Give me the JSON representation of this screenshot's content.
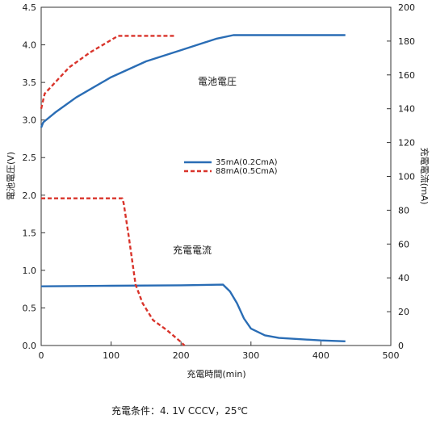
{
  "chart_data": {
    "type": "line",
    "xlabel": "充電時間(min)",
    "ylabel_left": "電池電圧(V)",
    "ylabel_right": "充電電流(mA)",
    "xlim": [
      0,
      500
    ],
    "ylim_left": [
      0.0,
      4.5
    ],
    "ylim_right": [
      0,
      200
    ],
    "x_ticks": [
      "0",
      "100",
      "200",
      "300",
      "400",
      "500"
    ],
    "y_left_ticks": [
      "0.0",
      "0.5",
      "1.0",
      "1.5",
      "2.0",
      "2.5",
      "3.0",
      "3.5",
      "4.0",
      "4.5"
    ],
    "y_right_ticks": [
      "0",
      "20",
      "40",
      "60",
      "80",
      "100",
      "120",
      "140",
      "160",
      "180",
      "200"
    ],
    "annotations": {
      "voltage": "電池電圧",
      "current": "充電電流"
    },
    "legend": [
      {
        "label": "35mA(0.2CmA)",
        "color": "#2a6db5",
        "style": "solid"
      },
      {
        "label": "88mA(0.5CmA)",
        "color": "#d9342b",
        "style": "dashed"
      }
    ],
    "series": [
      {
        "name": "35mA(0.2CmA)",
        "quantity": "電池電圧",
        "axis": "left",
        "color": "#2a6db5",
        "dash": false,
        "points": [
          [
            0,
            2.9
          ],
          [
            3,
            2.97
          ],
          [
            20,
            3.1
          ],
          [
            50,
            3.3
          ],
          [
            100,
            3.57
          ],
          [
            150,
            3.78
          ],
          [
            200,
            3.93
          ],
          [
            250,
            4.08
          ],
          [
            275,
            4.13
          ],
          [
            300,
            4.13
          ],
          [
            435,
            4.13
          ]
        ]
      },
      {
        "name": "88mA(0.5CmA)",
        "quantity": "電池電圧",
        "axis": "left",
        "color": "#d9342b",
        "dash": true,
        "points": [
          [
            0,
            3.15
          ],
          [
            5,
            3.35
          ],
          [
            20,
            3.5
          ],
          [
            40,
            3.7
          ],
          [
            70,
            3.9
          ],
          [
            110,
            4.12
          ],
          [
            150,
            4.12
          ],
          [
            190,
            4.12
          ]
        ]
      },
      {
        "name": "35mA(0.2CmA)",
        "quantity": "充電電流",
        "axis": "right",
        "color": "#2a6db5",
        "dash": false,
        "points": [
          [
            0,
            35
          ],
          [
            100,
            35.3
          ],
          [
            200,
            35.6
          ],
          [
            260,
            36
          ],
          [
            270,
            32
          ],
          [
            280,
            25
          ],
          [
            290,
            16
          ],
          [
            300,
            10
          ],
          [
            320,
            6
          ],
          [
            340,
            4.5
          ],
          [
            400,
            3
          ],
          [
            435,
            2.5
          ]
        ]
      },
      {
        "name": "88mA(0.5CmA)",
        "quantity": "充電電流",
        "axis": "right",
        "color": "#d9342b",
        "dash": true,
        "points": [
          [
            0,
            87
          ],
          [
            58,
            87
          ],
          [
            116,
            87
          ],
          [
            118,
            84
          ],
          [
            125,
            65
          ],
          [
            135,
            36
          ],
          [
            145,
            25
          ],
          [
            160,
            15
          ],
          [
            180,
            9
          ],
          [
            200,
            2
          ],
          [
            205,
            0
          ]
        ]
      }
    ]
  },
  "footnote": "充電条件：4. 1V CCCV，25℃"
}
